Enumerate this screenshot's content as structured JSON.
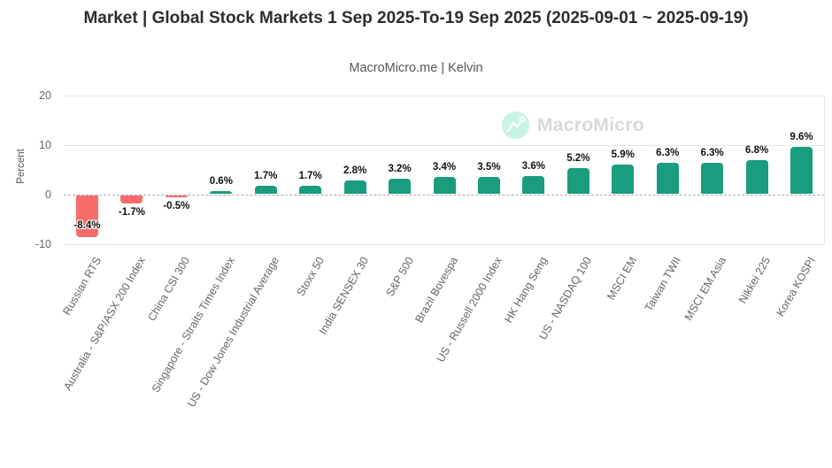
{
  "header": {
    "title": "Market | Global Stock Markets 1 Sep 2025-To-19 Sep 2025 (2025-09-01 ~ 2025-09-19)",
    "subtitle": "MacroMicro.me | Kelvin"
  },
  "watermark": {
    "text": "MacroMicro",
    "circle_color": "#c9f2e6",
    "text_color": "#d9d9d9"
  },
  "chart_data": {
    "type": "bar",
    "title": "Market | Global Stock Markets 1 Sep 2025-To-19 Sep 2025 (2025-09-01 ~ 2025-09-19)",
    "subtitle": "MacroMicro.me | Kelvin",
    "xlabel": "",
    "ylabel": "Percent",
    "ylim": [
      -10,
      20
    ],
    "grid": true,
    "legend": false,
    "zero_line_style": "dashed",
    "categories": [
      "Russian RTS",
      "Australia - S&P/ASX 200 Index",
      "China CSI 300",
      "Singapore - Straits Times Index",
      "US - Dow Jones Industrial Average",
      "Stoxx 50",
      "India SENSEX 30",
      "S&P 500",
      "Brazil Bovespa",
      "US - Russell 2000 Index",
      "HK Hang Seng",
      "US - NASDAQ 100",
      "MSCI EM",
      "Taiwan TWII",
      "MSCI EM Asia",
      "Nikkei 225",
      "Korea KOSPI"
    ],
    "values": [
      -8.4,
      -1.7,
      -0.5,
      0.6,
      1.7,
      1.7,
      2.8,
      3.2,
      3.4,
      3.5,
      3.6,
      5.2,
      5.9,
      6.3,
      6.3,
      6.8,
      9.6
    ],
    "data_labels": [
      "-8.4%",
      "-1.7%",
      "-0.5%",
      "0.6%",
      "1.7%",
      "1.7%",
      "2.8%",
      "3.2%",
      "3.4%",
      "3.5%",
      "3.6%",
      "5.2%",
      "5.9%",
      "6.3%",
      "6.3%",
      "6.8%",
      "9.6%"
    ],
    "yticks": [
      {
        "label": "20",
        "value": 20
      },
      {
        "label": "10",
        "value": 10
      },
      {
        "label": "0",
        "value": 0
      },
      {
        "label": "-10",
        "value": -10
      }
    ],
    "colors": {
      "positive": "#1a9c7e",
      "negative": "#f86c6c"
    }
  }
}
